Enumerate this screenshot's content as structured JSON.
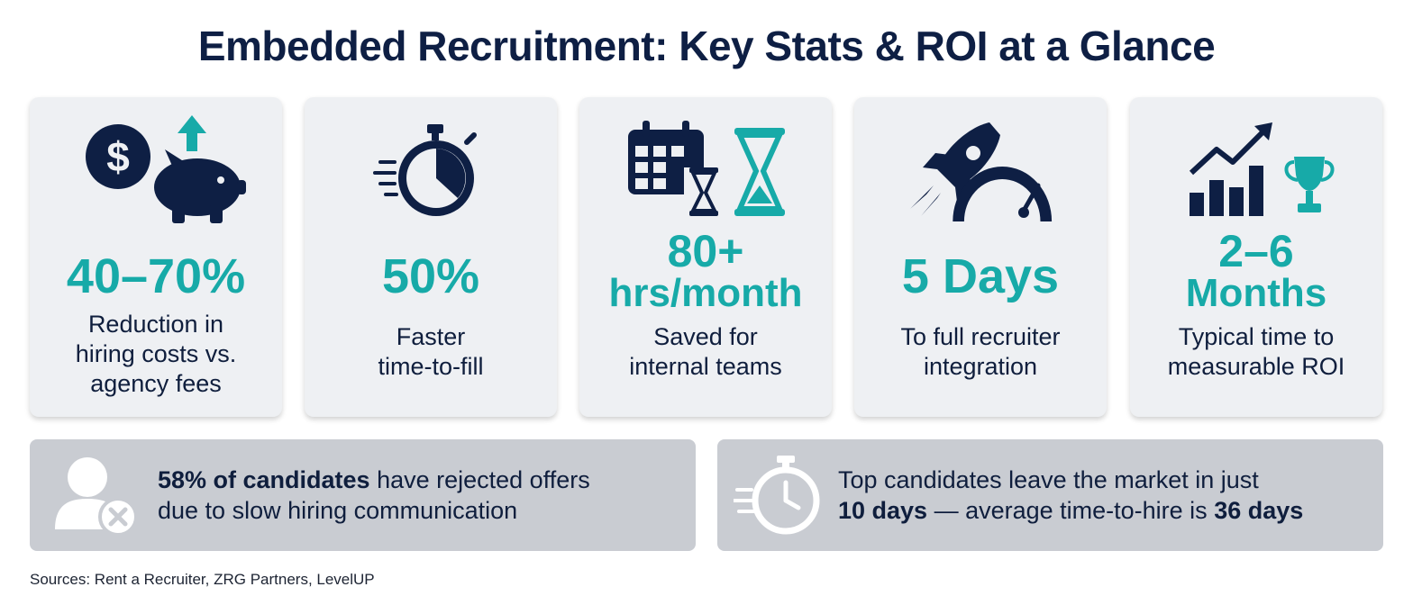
{
  "title": "Embedded Recruitment: Key Stats & ROI at a Glance",
  "colors": {
    "navy": "#0e1f44",
    "teal": "#17aaa8",
    "card_bg": "#eef0f3",
    "banner_bg": "#c9ccd2"
  },
  "cards": [
    {
      "icon": "dollar-piggy-bank-icon",
      "value": "40–70%",
      "desc_lines": [
        "Reduction in",
        "hiring costs vs.",
        "agency fees"
      ]
    },
    {
      "icon": "stopwatch-icon",
      "value": "50%",
      "desc_lines": [
        "Faster",
        "time-to-fill"
      ]
    },
    {
      "icon": "calendar-hourglass-icon",
      "value_lines": [
        "80+",
        "hrs/month"
      ],
      "desc_lines": [
        "Saved for",
        "internal teams"
      ]
    },
    {
      "icon": "rocket-gauge-icon",
      "value": "5 Days",
      "desc_lines": [
        "To full recruiter",
        "integration"
      ]
    },
    {
      "icon": "growth-chart-trophy-icon",
      "value_lines": [
        "2–6",
        "Months"
      ],
      "desc_lines": [
        "Typical time to",
        "measurable ROI"
      ]
    }
  ],
  "banners": [
    {
      "icon": "user-rejected-icon",
      "bold_1": "58% of candidates",
      "text_1": " have rejected offers",
      "text_2": "due to slow hiring communication"
    },
    {
      "icon": "fast-stopwatch-icon",
      "text_1": "Top candidates leave the market in just",
      "bold_2a": "10 days",
      "text_2a": " — average time-to-hire is ",
      "bold_2b": "36 days"
    }
  ],
  "sources": "Sources: Rent a Recruiter, ZRG Partners, LevelUP"
}
